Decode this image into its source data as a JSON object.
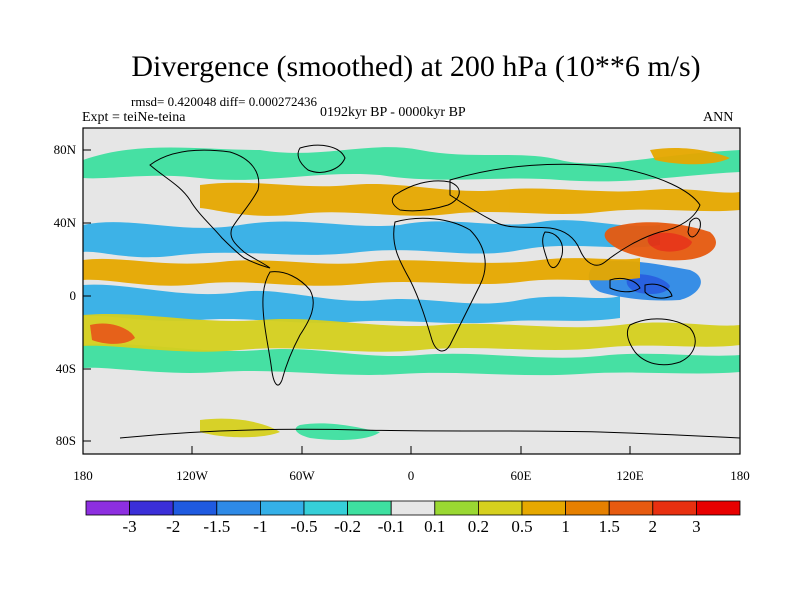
{
  "title": "Divergence (smoothed) at 200 hPa (10**6 m/s)",
  "stats": "rmsd= 0.420048 diff= 0.000272436",
  "experiment": "Expt = teiNe-teina",
  "period": "0192kyr BP - 0000kyr BP",
  "season": "ANN",
  "lat_labels": [
    "80N",
    "40N",
    "0",
    "40S",
    "80S"
  ],
  "lon_labels": [
    "180",
    "120W",
    "60W",
    "0",
    "60E",
    "120E",
    "180"
  ],
  "colorbar": {
    "labels": [
      "-3",
      "-2",
      "-1.5",
      "-1",
      "-0.5",
      "-0.2",
      "-0.1",
      "0.1",
      "0.2",
      "0.5",
      "1",
      "1.5",
      "2",
      "3"
    ],
    "colors": [
      "#8d2fe0",
      "#3b2fd8",
      "#1f5ae0",
      "#2e8ae6",
      "#34b0e8",
      "#36cfd8",
      "#3ee0a0",
      "#e6e6e6",
      "#9ad832",
      "#d6d01e",
      "#e6a800",
      "#e68000",
      "#e65a10",
      "#e83010",
      "#e80000"
    ]
  },
  "colors": {
    "land_line": "#000000",
    "background_field": "#e6e6e6",
    "pos_light": "#d6d01e",
    "pos_mid": "#e6a800",
    "pos_strong": "#e65a10",
    "neg_light": "#3ee0a0",
    "neg_mid": "#34b0e8",
    "neg_strong": "#2e8ae6"
  }
}
